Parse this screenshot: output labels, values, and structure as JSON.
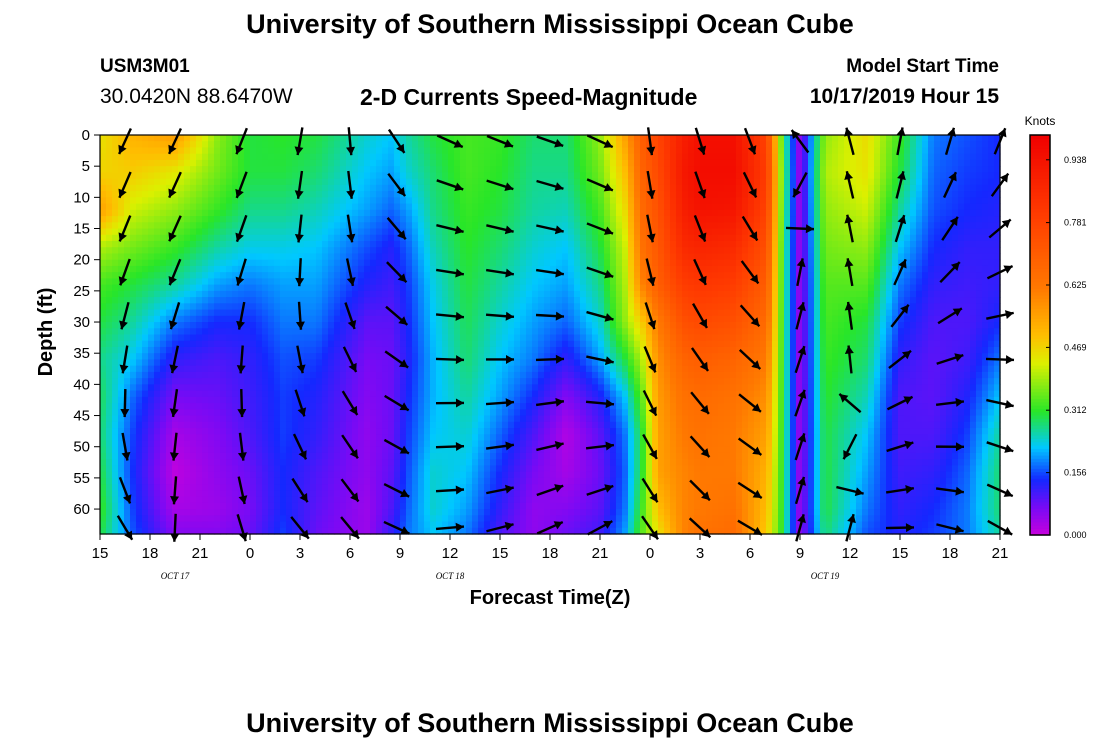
{
  "header": {
    "title": "University of Southern Mississippi Ocean Cube",
    "station_id": "USM3M01",
    "station_position": "30.0420N 88.6470W",
    "subtitle": "2-D Currents Speed-Magnitude",
    "start_label": "Model Start Time",
    "start_value": "10/17/2019 Hour 15"
  },
  "footer": {
    "title": "University of Southern Mississippi Ocean Cube"
  },
  "chart_data": {
    "type": "heatmap",
    "xlabel": "Forecast Time(Z)",
    "ylabel": "Depth (ft)",
    "x_range": [
      15,
      69
    ],
    "ylim": [
      0,
      64
    ],
    "y_inverted": true,
    "x_ticks": [
      "15",
      "18",
      "21",
      "0",
      "3",
      "6",
      "9",
      "12",
      "15",
      "18",
      "21",
      "0",
      "3",
      "6",
      "9",
      "12",
      "15",
      "18",
      "21"
    ],
    "y_ticks": [
      "0",
      "5",
      "10",
      "15",
      "20",
      "25",
      "30",
      "35",
      "40",
      "45",
      "50",
      "55",
      "60"
    ],
    "date_labels": [
      {
        "text": "OCT 17",
        "at_hour": 19.5
      },
      {
        "text": "OCT 18",
        "at_hour": 36
      },
      {
        "text": "OCT 19",
        "at_hour": 58.5
      }
    ],
    "colorbar": {
      "title": "Knots",
      "ticks": [
        "0.000",
        "0.156",
        "0.312",
        "0.469",
        "0.625",
        "0.781",
        "0.938"
      ],
      "range": [
        0,
        1.0
      ]
    },
    "arrow_times": [
      16.5,
      19.5,
      23.5,
      27,
      30,
      32.8,
      36,
      39,
      42,
      45,
      48,
      51,
      54,
      57,
      60,
      63,
      66,
      69
    ],
    "arrow_depths": [
      1,
      8,
      15,
      22,
      29,
      36,
      43,
      50,
      57,
      63
    ],
    "speed_field": {
      "times": [
        15,
        17,
        19.5,
        22,
        24,
        26,
        28,
        31,
        32.5,
        33.5,
        35,
        37,
        39,
        41,
        43,
        45,
        46.5,
        47.5,
        48.5,
        50,
        51,
        53,
        55,
        56,
        57,
        58.5,
        61,
        63,
        65,
        67,
        69
      ],
      "depths": [
        0,
        6,
        12,
        18,
        24,
        30,
        36,
        42,
        48,
        54,
        60,
        64
      ],
      "values": [
        [
          0.45,
          0.47,
          0.55,
          0.4,
          0.33,
          0.3,
          0.27,
          0.29,
          0.28,
          0.3,
          0.32,
          0.3
        ],
        [
          0.52,
          0.48,
          0.42,
          0.36,
          0.3,
          0.26,
          0.22,
          0.17,
          0.15,
          0.14,
          0.15,
          0.16
        ],
        [
          0.56,
          0.44,
          0.38,
          0.32,
          0.26,
          0.18,
          0.12,
          0.07,
          0.03,
          0.01,
          0.03,
          0.06
        ],
        [
          0.38,
          0.36,
          0.32,
          0.26,
          0.2,
          0.14,
          0.1,
          0.08,
          0.06,
          0.05,
          0.04,
          0.06
        ],
        [
          0.3,
          0.3,
          0.27,
          0.23,
          0.18,
          0.14,
          0.12,
          0.11,
          0.1,
          0.08,
          0.07,
          0.08
        ],
        [
          0.31,
          0.3,
          0.27,
          0.23,
          0.2,
          0.18,
          0.16,
          0.15,
          0.15,
          0.14,
          0.14,
          0.15
        ],
        [
          0.3,
          0.28,
          0.25,
          0.22,
          0.2,
          0.18,
          0.15,
          0.13,
          0.12,
          0.1,
          0.09,
          0.08
        ],
        [
          0.24,
          0.22,
          0.2,
          0.16,
          0.13,
          0.09,
          0.07,
          0.06,
          0.05,
          0.05,
          0.04,
          0.04
        ],
        [
          0.22,
          0.2,
          0.17,
          0.13,
          0.11,
          0.09,
          0.08,
          0.08,
          0.08,
          0.09,
          0.1,
          0.12
        ],
        [
          0.26,
          0.24,
          0.2,
          0.17,
          0.15,
          0.14,
          0.13,
          0.14,
          0.15,
          0.16,
          0.17,
          0.18
        ],
        [
          0.3,
          0.28,
          0.27,
          0.25,
          0.23,
          0.22,
          0.21,
          0.21,
          0.22,
          0.24,
          0.24,
          0.22
        ],
        [
          0.33,
          0.33,
          0.32,
          0.31,
          0.3,
          0.29,
          0.28,
          0.26,
          0.24,
          0.22,
          0.2,
          0.18
        ],
        [
          0.32,
          0.31,
          0.3,
          0.28,
          0.26,
          0.24,
          0.22,
          0.2,
          0.17,
          0.14,
          0.12,
          0.1
        ],
        [
          0.28,
          0.27,
          0.26,
          0.24,
          0.22,
          0.2,
          0.18,
          0.14,
          0.1,
          0.07,
          0.05,
          0.05
        ],
        [
          0.28,
          0.27,
          0.25,
          0.22,
          0.2,
          0.17,
          0.12,
          0.06,
          0.02,
          0.03,
          0.06,
          0.08
        ],
        [
          0.38,
          0.36,
          0.33,
          0.3,
          0.27,
          0.24,
          0.2,
          0.13,
          0.09,
          0.08,
          0.09,
          0.11
        ],
        [
          0.55,
          0.5,
          0.46,
          0.42,
          0.4,
          0.38,
          0.3,
          0.22,
          0.18,
          0.17,
          0.18,
          0.2
        ],
        [
          0.7,
          0.68,
          0.66,
          0.64,
          0.6,
          0.48,
          0.4,
          0.34,
          0.3,
          0.3,
          0.32,
          0.34
        ],
        [
          0.78,
          0.76,
          0.74,
          0.72,
          0.7,
          0.62,
          0.58,
          0.56,
          0.55,
          0.55,
          0.5,
          0.45
        ],
        [
          0.9,
          0.92,
          0.9,
          0.86,
          0.8,
          0.74,
          0.68,
          0.64,
          0.62,
          0.6,
          0.6,
          0.6
        ],
        [
          0.95,
          0.96,
          0.94,
          0.88,
          0.82,
          0.76,
          0.7,
          0.66,
          0.64,
          0.62,
          0.62,
          0.64
        ],
        [
          0.95,
          0.96,
          0.93,
          0.86,
          0.8,
          0.74,
          0.68,
          0.64,
          0.62,
          0.62,
          0.64,
          0.66
        ],
        [
          0.78,
          0.8,
          0.78,
          0.74,
          0.7,
          0.66,
          0.62,
          0.58,
          0.55,
          0.52,
          0.5,
          0.48
        ],
        [
          0.3,
          0.32,
          0.31,
          0.3,
          0.3,
          0.3,
          0.3,
          0.3,
          0.3,
          0.3,
          0.3,
          0.3
        ],
        [
          0.04,
          0.04,
          0.04,
          0.04,
          0.04,
          0.04,
          0.04,
          0.04,
          0.04,
          0.04,
          0.04,
          0.04
        ],
        [
          0.38,
          0.4,
          0.38,
          0.36,
          0.34,
          0.33,
          0.32,
          0.31,
          0.3,
          0.3,
          0.3,
          0.28
        ],
        [
          0.46,
          0.45,
          0.42,
          0.38,
          0.34,
          0.3,
          0.28,
          0.25,
          0.22,
          0.2,
          0.18,
          0.16
        ],
        [
          0.32,
          0.3,
          0.26,
          0.22,
          0.18,
          0.15,
          0.12,
          0.1,
          0.1,
          0.11,
          0.12,
          0.13
        ],
        [
          0.18,
          0.17,
          0.16,
          0.14,
          0.12,
          0.1,
          0.09,
          0.09,
          0.1,
          0.12,
          0.14,
          0.15
        ],
        [
          0.16,
          0.15,
          0.14,
          0.12,
          0.11,
          0.1,
          0.11,
          0.13,
          0.15,
          0.17,
          0.18,
          0.18
        ],
        [
          0.14,
          0.14,
          0.13,
          0.12,
          0.12,
          0.14,
          0.18,
          0.22,
          0.26,
          0.28,
          0.28,
          0.26
        ]
      ]
    },
    "direction_field": {
      "times": [
        15,
        21,
        25,
        30,
        36,
        42,
        45,
        47,
        49,
        54,
        57,
        60,
        63,
        69
      ],
      "depths": [
        0,
        20,
        40,
        64
      ],
      "angles_deg": [
        [
          205,
          200,
          185,
          130
        ],
        [
          205,
          205,
          190,
          200
        ],
        [
          200,
          195,
          175,
          140
        ],
        [
          175,
          170,
          150,
          140
        ],
        [
          115,
          100,
          90,
          85
        ],
        [
          110,
          100,
          85,
          65
        ],
        [
          115,
          110,
          100,
          60
        ],
        [
          180,
          170,
          160,
          150
        ],
        [
          165,
          165,
          150,
          140
        ],
        [
          160,
          145,
          130,
          120
        ],
        [
          340,
          10,
          20,
          15
        ],
        [
          345,
          350,
          355,
          0
        ],
        [
          10,
          20,
          60,
          90
        ],
        [
          20,
          60,
          100,
          120
        ]
      ]
    }
  }
}
